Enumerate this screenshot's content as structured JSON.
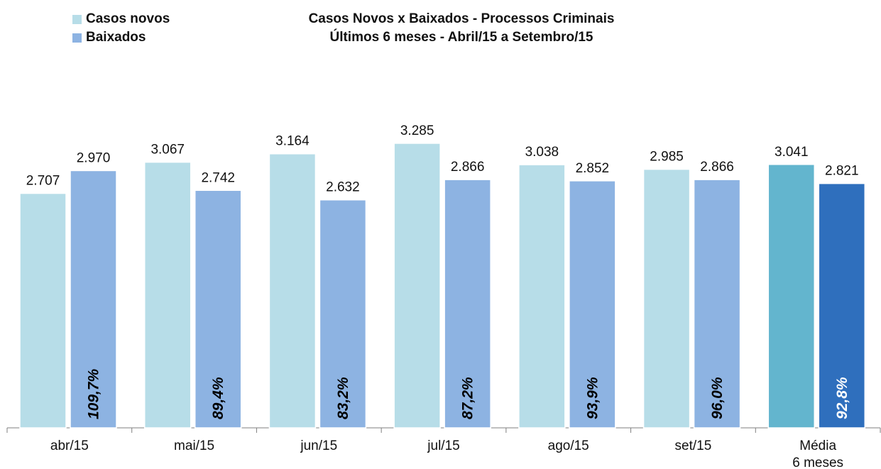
{
  "chart_data": {
    "type": "bar",
    "title_line1": "Casos Novos x Baixados - Processos Criminais",
    "title_line2": "Últimos 6 meses - Abril/15 a Setembro/15",
    "legend_position": "top-left",
    "grid": false,
    "categories": [
      "abr/15",
      "mai/15",
      "jun/15",
      "jul/15",
      "ago/15",
      "set/15",
      "Média|6 meses"
    ],
    "series": [
      {
        "name": "Casos novos",
        "values": [
          2707,
          3067,
          3164,
          3285,
          3038,
          2985,
          3041
        ],
        "labels": [
          "2.707",
          "3.067",
          "3.164",
          "3.285",
          "3.038",
          "2.985",
          "3.041"
        ],
        "color": "#b7dde8",
        "highlight_color": "#63b5ce"
      },
      {
        "name": "Baixados",
        "values": [
          2970,
          2742,
          2632,
          2866,
          2852,
          2866,
          2821
        ],
        "labels": [
          "2.970",
          "2.742",
          "2.632",
          "2.866",
          "2.852",
          "2.866",
          "2.821"
        ],
        "color": "#8db3e2",
        "highlight_color": "#2f6fbd"
      }
    ],
    "ratios": [
      "109,7%",
      "89,4%",
      "83,2%",
      "87,2%",
      "93,9%",
      "96,0%",
      "92,8%"
    ],
    "ylim": [
      0,
      3850
    ]
  }
}
